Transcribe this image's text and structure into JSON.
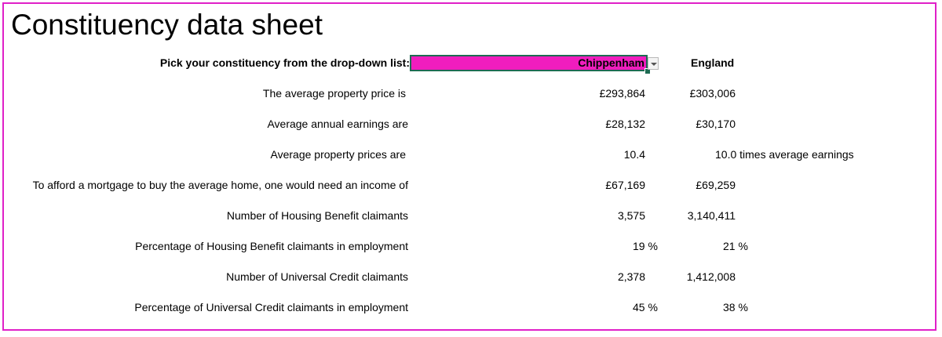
{
  "title": "Constituency data sheet",
  "picker": {
    "prompt": "Pick your constituency from the drop-down list:",
    "selected": "Chippenham",
    "comparison": "England"
  },
  "rows": [
    {
      "label": "The average property price is",
      "value": "£293,864",
      "england": "£303,006"
    },
    {
      "label": "Average annual earnings are",
      "value": "£28,132",
      "england": "£30,170"
    },
    {
      "label": "Average property prices are",
      "value": "10.4",
      "england": "10.0 times average earnings"
    },
    {
      "label": "To afford a mortgage to buy the average home, one would need an income of",
      "value": "£67,169",
      "england": "£69,259"
    },
    {
      "label": "Number of Housing Benefit claimants",
      "value": "3,575",
      "england": "3,140,411"
    },
    {
      "label": "Percentage of Housing Benefit claimants in employment",
      "value": "19 %",
      "england": "21 %"
    },
    {
      "label": "Number of Universal Credit claimants",
      "value": "2,378",
      "england": "1,412,008"
    },
    {
      "label": "Percentage of Universal Credit claimants in employment",
      "value": "45 %",
      "england": "38 %"
    }
  ],
  "colors": {
    "accent": "#f01dbe",
    "border": "#e020c8",
    "selection": "#1e6b52"
  }
}
